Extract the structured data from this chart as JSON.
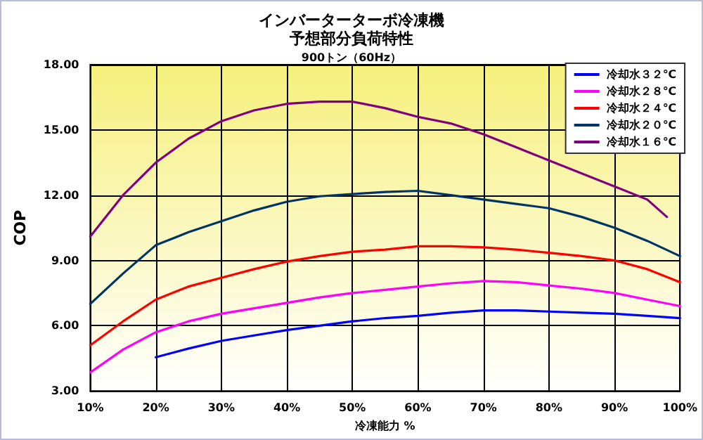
{
  "chart_data": {
    "type": "line",
    "title": "インバーターターボ冷凍機",
    "subtitle": "予想部分負荷特性",
    "annotations": [
      "900トン（60Hz）"
    ],
    "xlabel": "冷凍能力 %",
    "ylabel": "COP",
    "xlim": [
      10,
      100
    ],
    "xticks": [
      {
        "value": 10,
        "label": "10%"
      },
      {
        "value": 20,
        "label": "20%"
      },
      {
        "value": 30,
        "label": "30%"
      },
      {
        "value": 40,
        "label": "40%"
      },
      {
        "value": 50,
        "label": "50%"
      },
      {
        "value": 60,
        "label": "60%"
      },
      {
        "value": 70,
        "label": "70%"
      },
      {
        "value": 80,
        "label": "80%"
      },
      {
        "value": 90,
        "label": "90%"
      },
      {
        "value": 100,
        "label": "100%"
      }
    ],
    "ylim": [
      3,
      18
    ],
    "yticks": [
      {
        "value": 3,
        "label": "3.00"
      },
      {
        "value": 6,
        "label": "6.00"
      },
      {
        "value": 9,
        "label": "9.00"
      },
      {
        "value": 12,
        "label": "12.00"
      },
      {
        "value": 15,
        "label": "15.00"
      },
      {
        "value": 18,
        "label": "18.00"
      }
    ],
    "grid": true,
    "legend": "top right",
    "marker": "none",
    "line_style": "solid",
    "series": [
      {
        "name": "冷却水３２℃",
        "color": "#0000ff",
        "x": [
          20,
          25,
          30,
          35,
          40,
          45,
          50,
          55,
          60,
          65,
          70,
          75,
          80,
          85,
          90,
          95,
          100
        ],
        "values": [
          4.55,
          4.95,
          5.3,
          5.55,
          5.8,
          6.0,
          6.2,
          6.35,
          6.45,
          6.6,
          6.7,
          6.7,
          6.65,
          6.6,
          6.55,
          6.45,
          6.35
        ]
      },
      {
        "name": "冷却水２８℃",
        "color": "#ff00ff",
        "x": [
          10,
          15,
          20,
          25,
          30,
          35,
          40,
          45,
          50,
          55,
          60,
          65,
          70,
          75,
          80,
          85,
          90,
          95,
          100
        ],
        "values": [
          3.85,
          4.9,
          5.7,
          6.2,
          6.55,
          6.8,
          7.05,
          7.3,
          7.5,
          7.65,
          7.8,
          7.95,
          8.05,
          8.0,
          7.85,
          7.7,
          7.5,
          7.2,
          6.9
        ]
      },
      {
        "name": "冷却水２４℃",
        "color": "#ff0000",
        "x": [
          10,
          15,
          20,
          25,
          30,
          35,
          40,
          45,
          50,
          55,
          60,
          65,
          70,
          75,
          80,
          85,
          90,
          95,
          100
        ],
        "values": [
          5.1,
          6.2,
          7.2,
          7.8,
          8.2,
          8.6,
          8.95,
          9.2,
          9.4,
          9.5,
          9.65,
          9.65,
          9.6,
          9.5,
          9.35,
          9.2,
          9.0,
          8.6,
          8.0
        ]
      },
      {
        "name": "冷却水２０℃",
        "color": "#003366",
        "x": [
          10,
          15,
          20,
          25,
          30,
          35,
          40,
          45,
          50,
          55,
          60,
          65,
          70,
          75,
          80,
          85,
          90,
          95,
          100
        ],
        "values": [
          7.0,
          8.4,
          9.7,
          10.3,
          10.8,
          11.3,
          11.7,
          11.95,
          12.05,
          12.15,
          12.2,
          12.0,
          11.8,
          11.6,
          11.4,
          11.0,
          10.5,
          9.9,
          9.2
        ]
      },
      {
        "name": "冷却水１６℃",
        "color": "#800080",
        "x": [
          10,
          15,
          20,
          25,
          30,
          35,
          40,
          45,
          50,
          55,
          60,
          65,
          70,
          75,
          80,
          85,
          90,
          95,
          98
        ],
        "values": [
          10.1,
          12.0,
          13.5,
          14.6,
          15.4,
          15.9,
          16.2,
          16.3,
          16.3,
          16.0,
          15.6,
          15.3,
          14.8,
          14.2,
          13.6,
          13.0,
          12.4,
          11.8,
          11.0
        ]
      }
    ]
  }
}
